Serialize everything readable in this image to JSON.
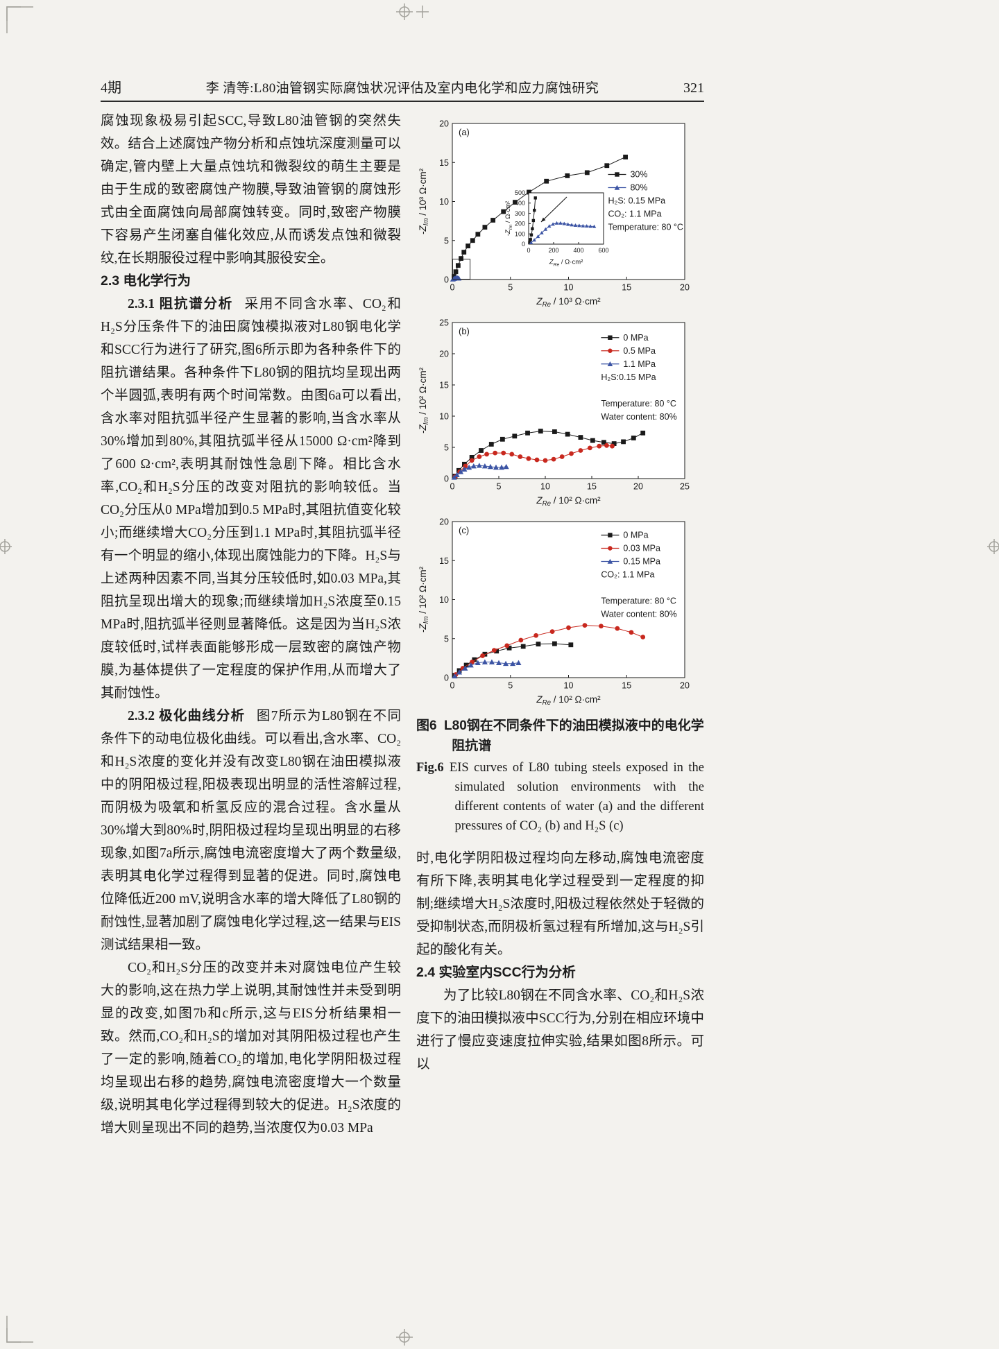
{
  "page": {
    "issue": "4期",
    "running_title": "李 清等:L80油管钢实际腐蚀状况评估及室内电化学和应力腐蚀研究",
    "page_number": "321"
  },
  "left_column": {
    "p1": "腐蚀现象极易引起SCC,导致L80油管钢的突然失效。结合上述腐蚀产物分析和点蚀坑深度测量可以确定,管内壁上大量点蚀坑和微裂纹的萌生主要是由于生成的致密腐蚀产物膜,导致油管钢的腐蚀形式由全面腐蚀向局部腐蚀转变。同时,致密产物膜下容易产生闭塞自催化效应,从而诱发点蚀和微裂纹,在长期服役过程中影响其服役安全。",
    "h23": "2.3 电化学行为",
    "p231_lead": "2.3.1 阻抗谱分析",
    "p231_text": "采用不同含水率、CO₂和H₂S分压条件下的油田腐蚀模拟液对L80钢电化学和SCC行为进行了研究,图6所示即为各种条件下的阻抗谱结果。各种条件下L80钢的阻抗均呈现出两个半圆弧,表明有两个时间常数。由图6a可以看出,含水率对阻抗弧半径产生显著的影响,当含水率从30%增加到80%,其阻抗弧半径从15000 Ω·cm²降到了600 Ω·cm²,表明其耐蚀性急剧下降。相比含水率,CO₂和H₂S分压的改变对阻抗的影响较低。当CO₂分压从0 MPa增加到0.5 MPa时,其阻抗值变化较小;而继续增大CO₂分压到1.1 MPa时,其阻抗弧半径有一个明显的缩小,体现出腐蚀能力的下降。H₂S与上述两种因素不同,当其分压较低时,如0.03 MPa,其阻抗呈现出增大的现象;而继续增加H₂S浓度至0.15 MPa时,阻抗弧半径则显著降低。这是因为当H₂S浓度较低时,试样表面能够形成一层致密的腐蚀产物膜,为基体提供了一定程度的保护作用,从而增大了其耐蚀性。",
    "p232_lead": "2.3.2 极化曲线分析",
    "p232_text": "图7所示为L80钢在不同条件下的动电位极化曲线。可以看出,含水率、CO₂和H₂S浓度的变化并没有改变L80钢在油田模拟液中的阴阳极过程,阳极表现出明显的活性溶解过程,而阴极为吸氧和析氢反应的混合过程。含水量从30%增大到80%时,阴阳极过程均呈现出明显的右移现象,如图7a所示,腐蚀电流密度增大了两个数量级,表明其电化学过程得到显著的促进。同时,腐蚀电位降低近200 mV,说明含水率的增大降低了L80钢的耐蚀性,显著加剧了腐蚀电化学过程,这一结果与EIS测试结果相一致。",
    "p3": "CO₂和H₂S分压的改变并未对腐蚀电位产生较大的影响,这在热力学上说明,其耐蚀性并未受到明显的改变,如图7b和c所示,这与EIS分析结果相一致。然而,CO₂和H₂S的增加对其阴阳极过程也产生了一定的影响,随着CO₂的增加,电化学阴阳极过程均呈现出右移的趋势,腐蚀电流密度增大一个数量级,说明其电化学过程得到较大的促进。H₂S浓度的增大则呈现出不同的趋势,当浓度仅为0.03 MPa"
  },
  "right_column": {
    "caption_zh_lead": "图6",
    "caption_zh_text": "L80钢在不同条件下的油田模拟液中的电化学阻抗谱",
    "caption_en_lead": "Fig.6",
    "caption_en_text": "EIS curves of L80 tubing steels exposed in the simulated solution environments with the different contents of water (a) and the different pressures of CO₂ (b) and H₂S (c)",
    "p1": "时,电化学阴阳极过程均向左移动,腐蚀电流密度有所下降,表明其电化学过程受到一定程度的抑制;继续增大H₂S浓度时,阳极过程依然处于轻微的受抑制状态,而阴极析氢过程有所增加,这与H₂S引起的酸化有关。",
    "h24": "2.4 实验室内SCC行为分析",
    "p2": "为了比较L80钢在不同含水率、CO₂和H₂S浓度下的油田模拟液中SCC行为,分别在相应环境中进行了慢应变速度拉伸实验,结果如图8所示。可以"
  },
  "chart_data": [
    {
      "id": "a",
      "type": "line",
      "panel_label": "(a)",
      "xlabel": {
        "sym": "Z",
        "sub": "Re",
        "unit": " / 10³ Ω·cm²"
      },
      "ylabel": {
        "sym": "-Z",
        "sub": "Im",
        "unit": " / 10³ Ω·cm²"
      },
      "xlim": [
        0,
        20
      ],
      "ylim": [
        0,
        20
      ],
      "xticks": [
        0,
        5,
        10,
        15,
        20
      ],
      "yticks": [
        0,
        5,
        10,
        15,
        20
      ],
      "legend_pos": [
        0.67,
        0.3
      ],
      "legend": [
        {
          "label": "30%",
          "marker": "square",
          "color": "#1a1a1a"
        },
        {
          "label": "80%",
          "marker": "triangle",
          "color": "#3c54a4"
        }
      ],
      "conditions": [
        "H₂S: 0.15 MPa",
        "CO₂: 1.1 MPa",
        "Temperature: 80 °C"
      ],
      "series": [
        {
          "name": "30%",
          "marker": "square",
          "color": "#1a1a1a",
          "points": [
            [
              0.15,
              0.4
            ],
            [
              0.3,
              1.0
            ],
            [
              0.5,
              1.8
            ],
            [
              0.75,
              2.7
            ],
            [
              1.0,
              3.5
            ],
            [
              1.35,
              4.3
            ],
            [
              1.75,
              5.0
            ],
            [
              2.2,
              5.8
            ],
            [
              2.8,
              6.7
            ],
            [
              3.5,
              7.6
            ],
            [
              4.4,
              8.7
            ],
            [
              5.4,
              9.9
            ],
            [
              6.6,
              11.2
            ],
            [
              8.1,
              12.6
            ],
            [
              9.9,
              13.3
            ],
            [
              11.6,
              13.7
            ],
            [
              13.3,
              14.6
            ],
            [
              14.9,
              15.7
            ]
          ]
        },
        {
          "name": "80%",
          "marker": "triangle",
          "color": "#3c54a4",
          "points": [
            [
              0.05,
              0.05
            ],
            [
              0.15,
              0.12
            ],
            [
              0.25,
              0.18
            ],
            [
              0.35,
              0.2
            ],
            [
              0.45,
              0.19
            ],
            [
              0.55,
              0.17
            ]
          ]
        }
      ],
      "zoom_box": {
        "x": [
          0,
          1.5
        ],
        "y": [
          0,
          2.6
        ]
      },
      "inset": {
        "xlabel": {
          "sym": "Z",
          "sub": "Re",
          "unit": " / Ω·cm²"
        },
        "ylabel": {
          "sym": "-Z",
          "sub": "Im",
          "unit": " / Ω·cm²"
        },
        "xlim": [
          0,
          600
        ],
        "ylim": [
          0,
          500
        ],
        "xticks": [
          0,
          200,
          400,
          600
        ],
        "yticks": [
          0,
          100,
          200,
          300,
          400,
          500
        ],
        "series": [
          {
            "name": "30%",
            "marker": "square",
            "color": "#1a1a1a",
            "points": [
              [
                8,
                15
              ],
              [
                15,
                45
              ],
              [
                22,
                90
              ],
              [
                30,
                150
              ],
              [
                38,
                230
              ],
              [
                46,
                330
              ],
              [
                54,
                450
              ]
            ]
          },
          {
            "name": "80%",
            "marker": "triangle",
            "color": "#3c54a4",
            "points": [
              [
                20,
                15
              ],
              [
                45,
                40
              ],
              [
                75,
                75
              ],
              [
                105,
                110
              ],
              [
                135,
                145
              ],
              [
                165,
                175
              ],
              [
                195,
                195
              ],
              [
                225,
                205
              ],
              [
                255,
                205
              ],
              [
                285,
                200
              ],
              [
                315,
                193
              ],
              [
                345,
                188
              ],
              [
                375,
                184
              ],
              [
                405,
                181
              ],
              [
                435,
                178
              ],
              [
                465,
                176
              ],
              [
                495,
                174
              ],
              [
                525,
                172
              ]
            ]
          }
        ]
      }
    },
    {
      "id": "b",
      "type": "line",
      "panel_label": "(b)",
      "xlabel": {
        "sym": "Z",
        "sub": "Re",
        "unit": " / 10² Ω·cm²"
      },
      "ylabel": {
        "sym": "-Z",
        "sub": "Im",
        "unit": " / 10² Ω·cm²"
      },
      "xlim": [
        0,
        25
      ],
      "ylim": [
        0,
        25
      ],
      "xticks": [
        0,
        5,
        10,
        15,
        20,
        25
      ],
      "yticks": [
        0,
        5,
        10,
        15,
        20,
        25
      ],
      "legend_pos": [
        0.64,
        0.07
      ],
      "legend": [
        {
          "label": "0 MPa",
          "marker": "square",
          "color": "#1a1a1a"
        },
        {
          "label": "0.5 MPa",
          "marker": "circle",
          "color": "#c8281e"
        },
        {
          "label": "1.1 MPa",
          "marker": "triangle",
          "color": "#3c54a4"
        }
      ],
      "conditions": [
        "H₂S:0.15 MPa",
        "",
        "Temperature: 80 °C",
        "Water content: 80%"
      ],
      "series": [
        {
          "name": "0 MPa",
          "marker": "square",
          "color": "#1a1a1a",
          "points": [
            [
              0.3,
              0.4
            ],
            [
              0.7,
              1.3
            ],
            [
              1.3,
              2.3
            ],
            [
              2.1,
              3.4
            ],
            [
              3.1,
              4.5
            ],
            [
              4.2,
              5.5
            ],
            [
              5.4,
              6.3
            ],
            [
              6.7,
              6.8
            ],
            [
              8.1,
              7.3
            ],
            [
              9.5,
              7.6
            ],
            [
              11.0,
              7.5
            ],
            [
              12.4,
              7.1
            ],
            [
              13.8,
              6.6
            ],
            [
              15.1,
              6.1
            ],
            [
              16.3,
              5.8
            ],
            [
              17.4,
              5.6
            ],
            [
              18.4,
              5.9
            ],
            [
              19.5,
              6.5
            ],
            [
              20.5,
              7.3
            ]
          ]
        },
        {
          "name": "0.5 MPa",
          "marker": "circle",
          "color": "#c8281e",
          "points": [
            [
              0.3,
              0.3
            ],
            [
              0.8,
              1.1
            ],
            [
              1.4,
              2.0
            ],
            [
              2.1,
              2.9
            ],
            [
              2.9,
              3.5
            ],
            [
              3.7,
              3.9
            ],
            [
              4.6,
              4.1
            ],
            [
              5.5,
              4.1
            ],
            [
              6.4,
              3.9
            ],
            [
              7.3,
              3.5
            ],
            [
              8.2,
              3.2
            ],
            [
              9.1,
              3.0
            ],
            [
              10.0,
              2.9
            ],
            [
              10.9,
              3.1
            ],
            [
              11.8,
              3.5
            ],
            [
              12.8,
              4.0
            ],
            [
              13.8,
              4.5
            ],
            [
              14.8,
              4.9
            ],
            [
              15.8,
              5.2
            ],
            [
              16.6,
              5.3
            ],
            [
              17.2,
              5.2
            ]
          ]
        },
        {
          "name": "1.1 MPa",
          "marker": "triangle",
          "color": "#3c54a4",
          "points": [
            [
              0.2,
              0.2
            ],
            [
              0.5,
              0.6
            ],
            [
              0.9,
              1.1
            ],
            [
              1.3,
              1.5
            ],
            [
              1.8,
              1.8
            ],
            [
              2.3,
              2.0
            ],
            [
              2.9,
              2.1
            ],
            [
              3.5,
              2.0
            ],
            [
              4.1,
              1.9
            ],
            [
              4.7,
              1.8
            ],
            [
              5.3,
              1.8
            ],
            [
              5.8,
              1.9
            ]
          ]
        }
      ]
    },
    {
      "id": "c",
      "type": "line",
      "panel_label": "(c)",
      "xlabel": {
        "sym": "Z",
        "sub": "Re",
        "unit": " / 10² Ω·cm²"
      },
      "ylabel": {
        "sym": "-Z",
        "sub": "Im",
        "unit": " / 10² Ω·cm²"
      },
      "xlim": [
        0,
        20
      ],
      "ylim": [
        0,
        20
      ],
      "xticks": [
        0,
        5,
        10,
        15,
        20
      ],
      "yticks": [
        0,
        5,
        10,
        15,
        20
      ],
      "legend_pos": [
        0.64,
        0.06
      ],
      "legend": [
        {
          "label": "0 MPa",
          "marker": "square",
          "color": "#1a1a1a"
        },
        {
          "label": "0.03 MPa",
          "marker": "circle",
          "color": "#c8281e"
        },
        {
          "label": "0.15 MPa",
          "marker": "triangle",
          "color": "#3c54a4"
        }
      ],
      "conditions": [
        "CO₂: 1.1 MPa",
        "",
        "Temperature: 80 °C",
        "Water content: 80%"
      ],
      "series": [
        {
          "name": "0 MPa",
          "marker": "square",
          "color": "#1a1a1a",
          "points": [
            [
              0.2,
              0.3
            ],
            [
              0.6,
              0.9
            ],
            [
              1.2,
              1.6
            ],
            [
              1.9,
              2.3
            ],
            [
              2.8,
              3.0
            ],
            [
              3.8,
              3.4
            ],
            [
              4.9,
              3.8
            ],
            [
              6.1,
              4.0
            ],
            [
              7.4,
              4.3
            ],
            [
              8.8,
              4.35
            ],
            [
              10.2,
              4.2
            ]
          ]
        },
        {
          "name": "0.03 MPa",
          "marker": "circle",
          "color": "#c8281e",
          "points": [
            [
              0.3,
              0.4
            ],
            [
              0.9,
              1.2
            ],
            [
              1.7,
              2.0
            ],
            [
              2.6,
              2.8
            ],
            [
              3.6,
              3.5
            ],
            [
              4.7,
              4.1
            ],
            [
              5.9,
              4.8
            ],
            [
              7.2,
              5.4
            ],
            [
              8.6,
              5.9
            ],
            [
              10.0,
              6.4
            ],
            [
              11.4,
              6.7
            ],
            [
              12.8,
              6.6
            ],
            [
              14.2,
              6.3
            ],
            [
              15.4,
              5.8
            ],
            [
              16.4,
              5.2
            ]
          ]
        },
        {
          "name": "0.15 MPa",
          "marker": "triangle",
          "color": "#3c54a4",
          "points": [
            [
              0.2,
              0.2
            ],
            [
              0.6,
              0.7
            ],
            [
              1.1,
              1.2
            ],
            [
              1.6,
              1.6
            ],
            [
              2.2,
              1.9
            ],
            [
              2.8,
              2.0
            ],
            [
              3.4,
              2.0
            ],
            [
              4.0,
              1.9
            ],
            [
              4.6,
              1.8
            ],
            [
              5.2,
              1.8
            ],
            [
              5.7,
              1.9
            ]
          ]
        }
      ]
    }
  ]
}
